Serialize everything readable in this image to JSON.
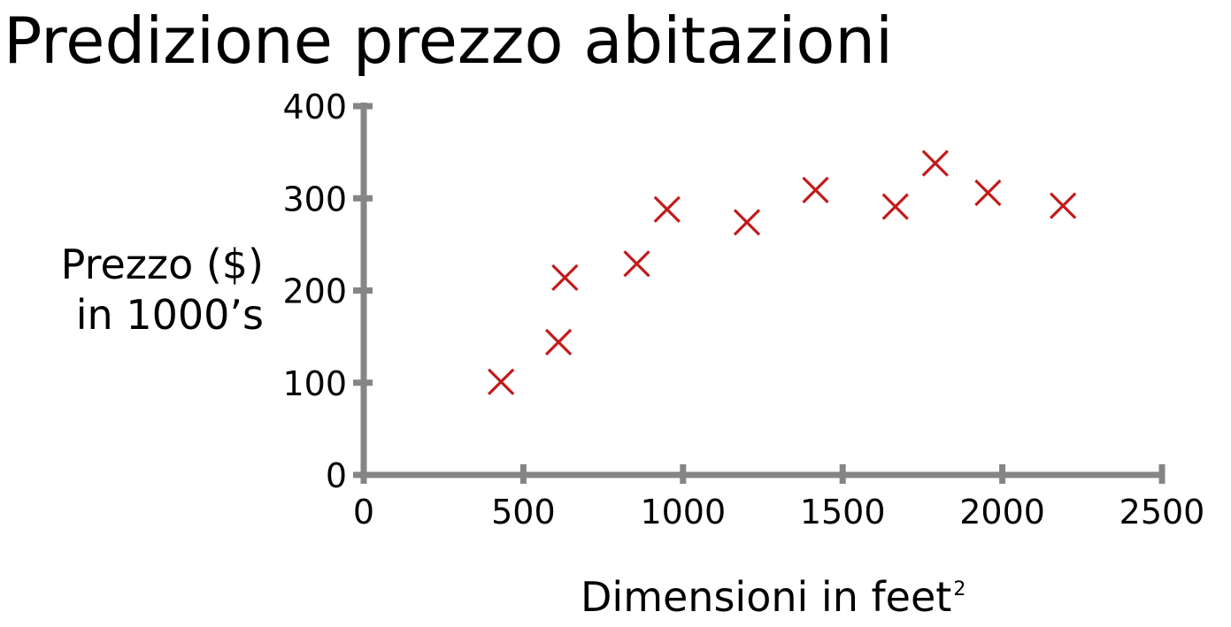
{
  "chart_data": {
    "type": "scatter",
    "title": "Predizione prezzo abitazioni",
    "xlabel": "Dimensioni in feet",
    "xlabel_superscript": "2",
    "ylabel_lines": [
      "Prezzo ($)",
      "in 1000’s"
    ],
    "xlim": [
      0,
      2500
    ],
    "ylim": [
      0,
      400
    ],
    "x_ticks": [
      0,
      500,
      1000,
      1500,
      2000,
      2500
    ],
    "y_ticks": [
      0,
      100,
      200,
      300,
      400
    ],
    "grid": false,
    "marker": "x",
    "series": [
      {
        "points": [
          {
            "x": 430,
            "y": 101
          },
          {
            "x": 610,
            "y": 144
          },
          {
            "x": 630,
            "y": 214
          },
          {
            "x": 855,
            "y": 229
          },
          {
            "x": 950,
            "y": 288
          },
          {
            "x": 1200,
            "y": 274
          },
          {
            "x": 1415,
            "y": 309
          },
          {
            "x": 1665,
            "y": 291
          },
          {
            "x": 1790,
            "y": 338
          },
          {
            "x": 1955,
            "y": 306
          },
          {
            "x": 2190,
            "y": 292
          }
        ]
      }
    ],
    "colors": {
      "marker": "#c41a1a",
      "axis": "#858585"
    }
  }
}
